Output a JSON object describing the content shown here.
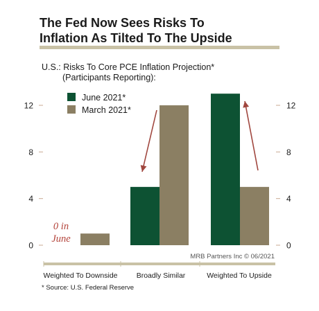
{
  "header": {
    "title_line1": "The Fed Now Sees Risks To",
    "title_line2": "Inflation As Tilted To The Upside"
  },
  "subtitle": {
    "line1": "U.S.: Risks To Core PCE Inflation Projection*",
    "line2": "(Participants Reporting):"
  },
  "source_note": "* Source: U.S. Federal Reserve",
  "chart_data": {
    "type": "bar",
    "categories": [
      "Weighted To Downside",
      "Broadly Similar",
      "Weighted To Upside"
    ],
    "series": [
      {
        "name": "June 2021*",
        "values": [
          0,
          5,
          13
        ],
        "color": "#0d5233"
      },
      {
        "name": "March 2021*",
        "values": [
          1,
          12,
          5
        ],
        "color": "#8b7f63"
      }
    ],
    "ylim": [
      0,
      14
    ],
    "yticks": [
      0,
      4,
      8,
      12
    ],
    "y_axis": "left and right",
    "grid": false,
    "legend_position": "top-left",
    "annotations": [
      {
        "text": "0 in June",
        "color": "#b3433a",
        "style": "italic"
      }
    ],
    "arrows": [
      {
        "from_category": "Broadly Similar",
        "direction": "down",
        "color": "#a0463e"
      },
      {
        "from_category": "Weighted To Upside",
        "direction": "up",
        "color": "#a0463e"
      }
    ],
    "credit": "MRB Partners Inc © 06/2021"
  }
}
